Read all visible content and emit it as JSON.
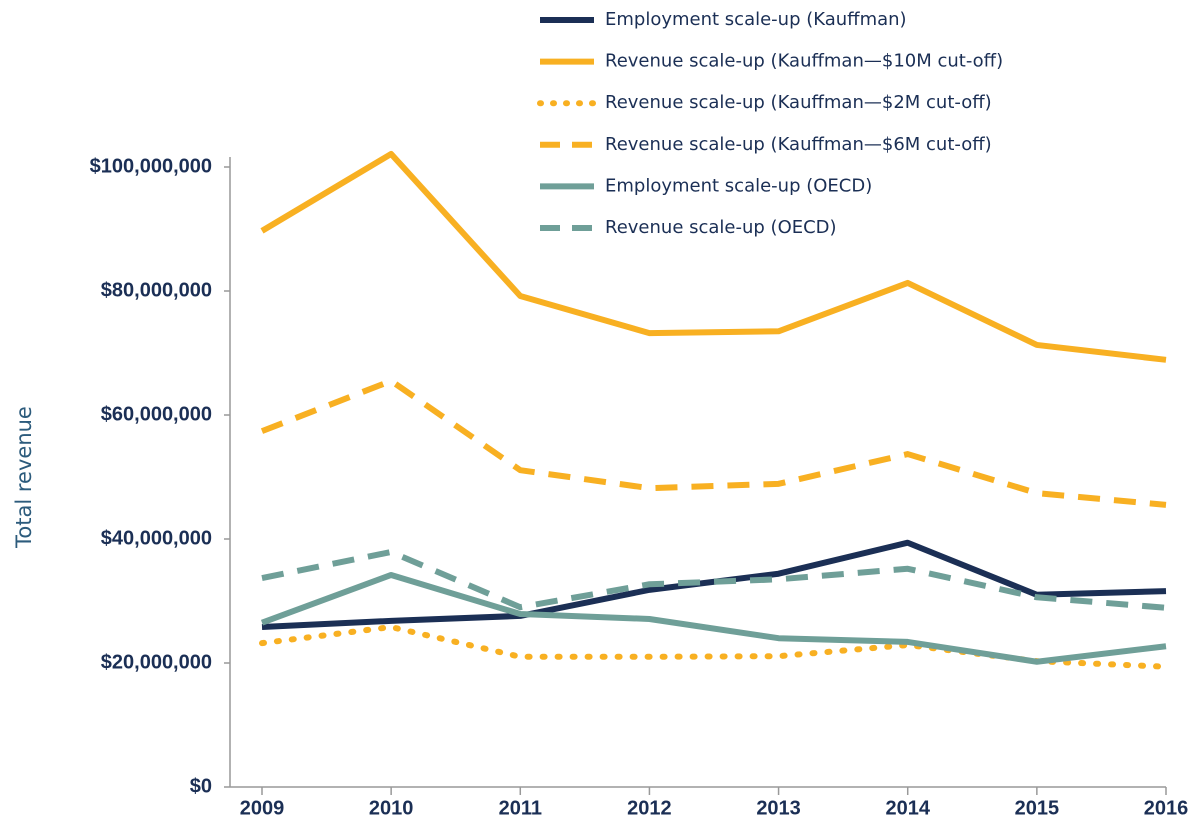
{
  "chart_data": {
    "type": "line",
    "y_label": "Total revenue",
    "categories": [
      "2009",
      "2010",
      "2011",
      "2012",
      "2013",
      "2014",
      "2015",
      "2016"
    ],
    "series": [
      {
        "name": "Employment scale-up (Kauffman)",
        "color": "#1b2f55",
        "dash": "solid",
        "values": [
          25800000,
          26800000,
          27600000,
          31800000,
          34400000,
          39400000,
          31000000,
          31600000
        ]
      },
      {
        "name": "Revenue scale-up (Kauffman—$10M cut-off)",
        "color": "#f8b022",
        "dash": "solid",
        "values": [
          89700000,
          102100000,
          79200000,
          73200000,
          73500000,
          81300000,
          71300000,
          68900000
        ]
      },
      {
        "name": "Revenue scale-up (Kauffman—$2M cut-off)",
        "color": "#f8b022",
        "dash": "dotted",
        "values": [
          23200000,
          25800000,
          21000000,
          21000000,
          21100000,
          22900000,
          20300000,
          19400000
        ]
      },
      {
        "name": "Revenue scale-up (Kauffman—$6M cut-off)",
        "color": "#f8b022",
        "dash": "dashed",
        "values": [
          57400000,
          65500000,
          51100000,
          48200000,
          48900000,
          53700000,
          47400000,
          45500000
        ]
      },
      {
        "name": "Employment scale-up (OECD)",
        "color": "#6f9f98",
        "dash": "solid",
        "values": [
          26500000,
          34200000,
          27900000,
          27100000,
          24000000,
          23400000,
          20200000,
          22700000
        ]
      },
      {
        "name": "Revenue scale-up (OECD)",
        "color": "#6f9f98",
        "dash": "dashed",
        "values": [
          33700000,
          37900000,
          29000000,
          32700000,
          33500000,
          35200000,
          30600000,
          28900000
        ]
      }
    ],
    "ylim": [
      0,
      100000000
    ],
    "yticks": [
      {
        "value": 0,
        "label": "$0"
      },
      {
        "value": 20000000,
        "label": "$20,000,000"
      },
      {
        "value": 40000000,
        "label": "$40,000,000"
      },
      {
        "value": 60000000,
        "label": "$60,000,000"
      },
      {
        "value": 80000000,
        "label": "$80,000,000"
      },
      {
        "value": 100000000,
        "label": "$100,000,000"
      }
    ],
    "grid": false,
    "legend": "top"
  }
}
